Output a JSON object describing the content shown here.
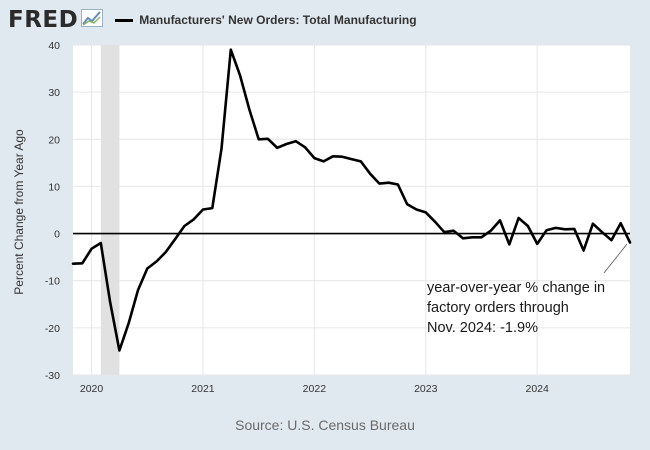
{
  "header": {
    "logo_text": "FRED",
    "logo_icon": "fred-line-graph-icon"
  },
  "colors": {
    "background": "#e1e9f0",
    "plot_background": "#ffffff",
    "series_line": "#000000",
    "recession_shade": "#e1e1e1",
    "gridline": "#e6e6e6",
    "zero_line": "#000000"
  },
  "chart_data": {
    "type": "line",
    "title": "Manufacturers' New Orders: Total Manufacturing",
    "ylabel": "Percent Change from Year Ago",
    "xlabel": "",
    "ylim": [
      -30,
      40
    ],
    "yticks": [
      40,
      30,
      20,
      10,
      0,
      -10,
      -20,
      -30
    ],
    "xticks": [
      "2020",
      "2021",
      "2022",
      "2023",
      "2024"
    ],
    "xlim": [
      "2019-11",
      "2024-11"
    ],
    "grid": true,
    "recession_shading": [
      "2020-02",
      "2020-04"
    ],
    "annotation": {
      "lines": [
        "year-over-year % change in",
        "factory orders through",
        "Nov. 2024: -1.9%"
      ]
    },
    "source": "Source: U.S. Census Bureau",
    "series": [
      {
        "name": "Manufacturers' New Orders: Total Manufacturing",
        "x": [
          "2019-11",
          "2019-12",
          "2020-01",
          "2020-02",
          "2020-03",
          "2020-04",
          "2020-05",
          "2020-06",
          "2020-07",
          "2020-08",
          "2020-09",
          "2020-10",
          "2020-11",
          "2020-12",
          "2021-01",
          "2021-02",
          "2021-03",
          "2021-04",
          "2021-05",
          "2021-06",
          "2021-07",
          "2021-08",
          "2021-09",
          "2021-10",
          "2021-11",
          "2021-12",
          "2022-01",
          "2022-02",
          "2022-03",
          "2022-04",
          "2022-05",
          "2022-06",
          "2022-07",
          "2022-08",
          "2022-09",
          "2022-10",
          "2022-11",
          "2022-12",
          "2023-01",
          "2023-02",
          "2023-03",
          "2023-04",
          "2023-05",
          "2023-06",
          "2023-07",
          "2023-08",
          "2023-09",
          "2023-10",
          "2023-11",
          "2023-12",
          "2024-01",
          "2024-02",
          "2024-03",
          "2024-04",
          "2024-05",
          "2024-06",
          "2024-07",
          "2024-08",
          "2024-09",
          "2024-10",
          "2024-11"
        ],
        "values": [
          -6.4,
          -6.3,
          -3.2,
          -2.0,
          -14.5,
          -24.8,
          -19.0,
          -12.0,
          -7.4,
          -5.9,
          -3.9,
          -1.2,
          1.6,
          3.0,
          5.1,
          5.4,
          18.0,
          39.0,
          33.5,
          26.3,
          20.0,
          20.1,
          18.2,
          19.0,
          19.6,
          18.3,
          16.0,
          15.3,
          16.4,
          16.3,
          15.8,
          15.3,
          12.7,
          10.6,
          10.8,
          10.4,
          6.2,
          5.1,
          4.5,
          2.5,
          0.3,
          0.6,
          -1.0,
          -0.8,
          -0.8,
          0.6,
          2.8,
          -2.3,
          3.3,
          1.6,
          -2.2,
          0.7,
          1.2,
          0.9,
          1.0,
          -3.6,
          2.1,
          0.3,
          -1.4,
          2.2,
          -1.9
        ]
      }
    ]
  }
}
